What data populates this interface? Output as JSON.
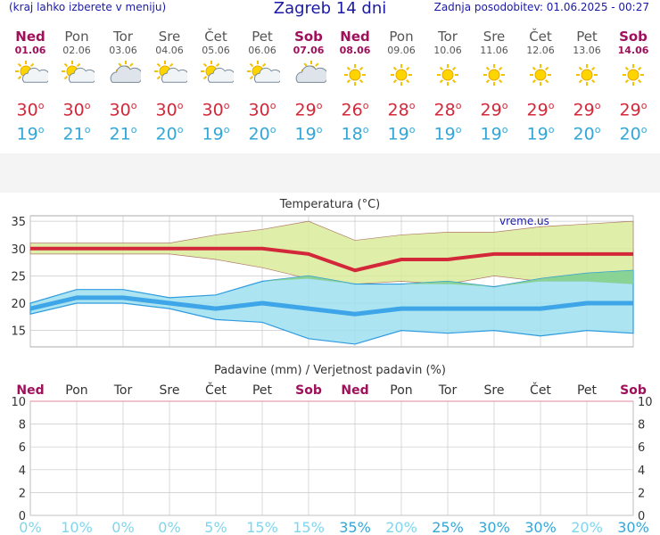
{
  "header": {
    "menu_hint": "(kraj lahko izberete v meniju)",
    "title": "Zagreb 14 dni",
    "updated": "Zadnja posodobitev: 01.06.2025 - 00:27"
  },
  "days": [
    {
      "name": "Ned",
      "date": "01.06",
      "weekend": true,
      "icon": "sun-cloud-icon",
      "tmax": "30",
      "tmin": "19"
    },
    {
      "name": "Pon",
      "date": "02.06",
      "weekend": false,
      "icon": "sun-cloud-icon",
      "tmax": "30",
      "tmin": "21"
    },
    {
      "name": "Tor",
      "date": "03.06",
      "weekend": false,
      "icon": "cloud-sun-icon",
      "tmax": "30",
      "tmin": "21"
    },
    {
      "name": "Sre",
      "date": "04.06",
      "weekend": false,
      "icon": "sun-cloud-icon",
      "tmax": "30",
      "tmin": "20"
    },
    {
      "name": "Čet",
      "date": "05.06",
      "weekend": false,
      "icon": "sun-cloud-icon",
      "tmax": "30",
      "tmin": "19"
    },
    {
      "name": "Pet",
      "date": "06.06",
      "weekend": false,
      "icon": "sun-cloud-icon",
      "tmax": "30",
      "tmin": "20"
    },
    {
      "name": "Sob",
      "date": "07.06",
      "weekend": true,
      "icon": "cloud-sun-icon",
      "tmax": "29",
      "tmin": "19"
    },
    {
      "name": "Ned",
      "date": "08.06",
      "weekend": true,
      "icon": "sun-icon",
      "tmax": "26",
      "tmin": "18"
    },
    {
      "name": "Pon",
      "date": "09.06",
      "weekend": false,
      "icon": "sun-icon",
      "tmax": "28",
      "tmin": "19"
    },
    {
      "name": "Tor",
      "date": "10.06",
      "weekend": false,
      "icon": "sun-icon",
      "tmax": "28",
      "tmin": "19"
    },
    {
      "name": "Sre",
      "date": "11.06",
      "weekend": false,
      "icon": "sun-icon",
      "tmax": "29",
      "tmin": "19"
    },
    {
      "name": "Čet",
      "date": "12.06",
      "weekend": false,
      "icon": "sun-icon",
      "tmax": "29",
      "tmin": "19"
    },
    {
      "name": "Pet",
      "date": "13.06",
      "weekend": false,
      "icon": "sun-icon",
      "tmax": "29",
      "tmin": "20"
    },
    {
      "name": "Sob",
      "date": "14.06",
      "weekend": true,
      "icon": "sun-icon",
      "tmax": "29",
      "tmin": "20"
    }
  ],
  "degree_mark": "o",
  "colors": {
    "tmax": "#d3283a",
    "tmin": "#33a7d8",
    "weekend": "#a0105a",
    "max_band": "#d9ec9a",
    "min_band": "#9ee0ef",
    "overlap": "#86d08c",
    "precip_pct": "#7fd6ec",
    "precip_pct_strong": "#33a7d8"
  },
  "chart_data": [
    {
      "type": "line",
      "title": "Temperatura (°C)",
      "watermark": "vreme.us",
      "ylim": [
        12,
        36
      ],
      "yticks": [
        15,
        20,
        25,
        30,
        35
      ],
      "categories": [
        "01.06",
        "02.06",
        "03.06",
        "04.06",
        "05.06",
        "06.06",
        "07.06",
        "08.06",
        "09.06",
        "10.06",
        "11.06",
        "12.06",
        "13.06",
        "14.06"
      ],
      "series": [
        {
          "name": "max",
          "values": [
            30,
            30,
            30,
            30,
            30,
            30,
            29,
            26,
            28,
            28,
            29,
            29,
            29,
            29
          ]
        },
        {
          "name": "min",
          "values": [
            19,
            21,
            21,
            20,
            19,
            20,
            19,
            18,
            19,
            19,
            19,
            19,
            20,
            20
          ]
        }
      ],
      "bands": [
        {
          "name": "max-range",
          "upper": [
            31,
            31,
            31,
            31,
            32.5,
            33.5,
            35,
            31.5,
            32.5,
            33,
            33,
            34,
            34.5,
            35
          ],
          "lower": [
            29,
            29,
            29,
            29,
            28,
            26.5,
            24.5,
            23.5,
            24,
            23.5,
            25,
            24,
            24,
            23.5
          ]
        },
        {
          "name": "min-range",
          "upper": [
            20,
            22.5,
            22.5,
            21,
            21.5,
            24,
            25,
            23.5,
            23.5,
            24,
            23,
            24.5,
            25.5,
            26
          ],
          "lower": [
            18,
            20,
            20,
            19,
            17,
            16.5,
            13.5,
            12.5,
            15,
            14.5,
            15,
            14,
            15,
            14.5
          ]
        }
      ],
      "grid": true
    },
    {
      "type": "bar",
      "title": "Padavine (mm) / Verjetnost padavin (%)",
      "categories": [
        "Ned",
        "Pon",
        "Tor",
        "Sre",
        "Čet",
        "Pet",
        "Sob",
        "Ned",
        "Pon",
        "Tor",
        "Sre",
        "Čet",
        "Pet",
        "Sob"
      ],
      "weekend": [
        true,
        false,
        false,
        false,
        false,
        false,
        true,
        true,
        false,
        false,
        false,
        false,
        false,
        true
      ],
      "ylim": [
        0,
        10
      ],
      "yticks": [
        0,
        2,
        4,
        6,
        8,
        10
      ],
      "precip_mm": [
        0,
        0,
        0,
        0,
        0,
        0,
        0,
        0,
        0,
        0,
        0,
        0,
        0,
        0
      ],
      "probability_pct": [
        0,
        10,
        0,
        0,
        5,
        15,
        15,
        35,
        20,
        25,
        30,
        30,
        20,
        30
      ],
      "probability_labels": [
        "0%",
        "10%",
        "0%",
        "0%",
        "5%",
        "15%",
        "15%",
        "35%",
        "20%",
        "25%",
        "30%",
        "30%",
        "20%",
        "30%"
      ],
      "grid": true
    }
  ]
}
